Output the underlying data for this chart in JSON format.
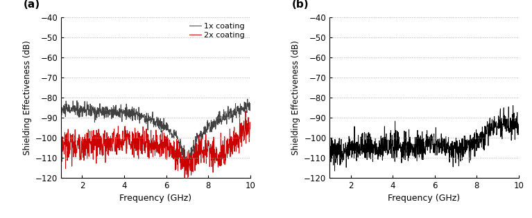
{
  "xlim": [
    1,
    10
  ],
  "ylim": [
    -120,
    -40
  ],
  "yticks": [
    -120,
    -110,
    -100,
    -90,
    -80,
    -70,
    -60,
    -50,
    -40
  ],
  "xticks": [
    2,
    4,
    6,
    8,
    10
  ],
  "xlabel": "Frequency (GHz)",
  "ylabel": "Shielding Effectiveness (dB)",
  "label_a": "(a)",
  "label_b": "(b)",
  "legend_1x": "1x coating",
  "legend_2x": "2x coating",
  "color_1x": "#404040",
  "color_2x": "#cc0000",
  "color_b": "#000000",
  "linewidth": 0.7,
  "grid_color": "#b0b0b0",
  "n_points": 900,
  "freq_start": 1.0,
  "freq_end": 10.0
}
